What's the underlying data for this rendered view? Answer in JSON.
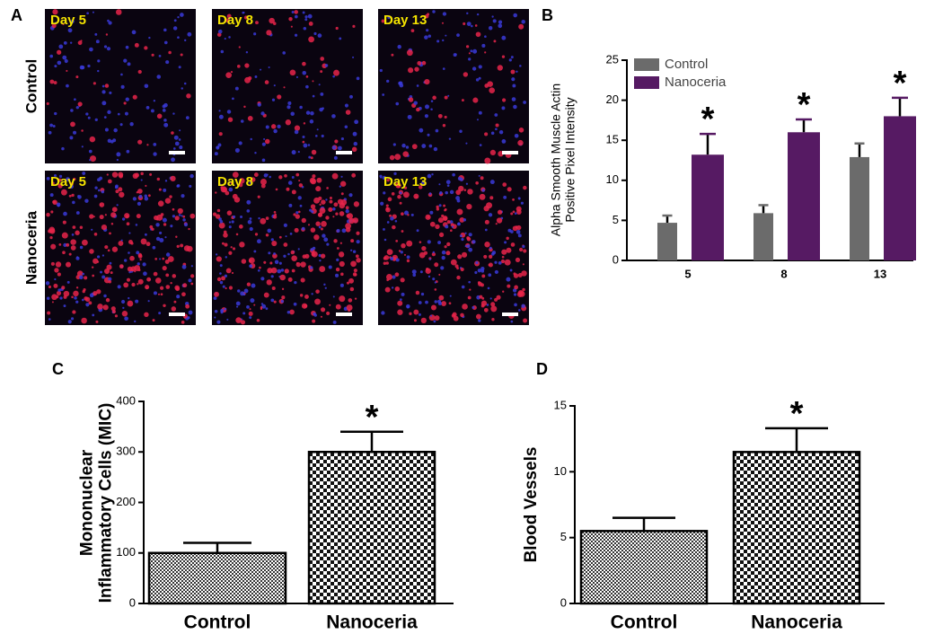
{
  "panel_a": {
    "panel": "A",
    "rows": [
      "Control",
      "Nanoceria"
    ],
    "days": [
      [
        "Day 5",
        "Day 8",
        "Day 13"
      ],
      [
        "Day 5",
        "Day 8",
        "Day 13"
      ]
    ]
  },
  "chart_data": [
    {
      "type": "bar",
      "panel": "B",
      "ylabel": [
        "Alpha Smooth Muscle Actin",
        "Positive Pixel Intensity"
      ],
      "categories": [
        "5",
        "8",
        "13"
      ],
      "series": [
        {
          "name": "Control",
          "color": "#6b6b6b",
          "values": [
            4.7,
            5.9,
            12.9
          ],
          "errors": [
            0.9,
            1.0,
            1.7
          ]
        },
        {
          "name": "Nanoceria",
          "color": "#561a63",
          "values": [
            13.2,
            16.0,
            18.0
          ],
          "errors": [
            2.6,
            1.6,
            2.3
          ],
          "annotations": [
            "*",
            "*",
            "*"
          ]
        }
      ],
      "ylim": [
        0,
        25
      ],
      "yticks": [
        0,
        5,
        10,
        15,
        20,
        25
      ],
      "legend": "top-left"
    },
    {
      "type": "bar",
      "panel": "C",
      "ylabel": [
        "Mononuclear",
        "Inflammatory Cells (MIC)"
      ],
      "categories": [
        "Control",
        "Nanoceria"
      ],
      "values": [
        100,
        300
      ],
      "errors": [
        20,
        40
      ],
      "annotations": [
        null,
        "*"
      ],
      "ylim": [
        0,
        400
      ],
      "yticks": [
        0,
        100,
        200,
        300,
        400
      ]
    },
    {
      "type": "bar",
      "panel": "D",
      "ylabel": [
        "Blood Vessels"
      ],
      "categories": [
        "Control",
        "Nanoceria"
      ],
      "values": [
        5.5,
        11.5
      ],
      "errors": [
        1.0,
        1.8
      ],
      "annotations": [
        null,
        "*"
      ],
      "ylim": [
        0,
        15
      ],
      "yticks": [
        0,
        5,
        10,
        15
      ]
    }
  ]
}
